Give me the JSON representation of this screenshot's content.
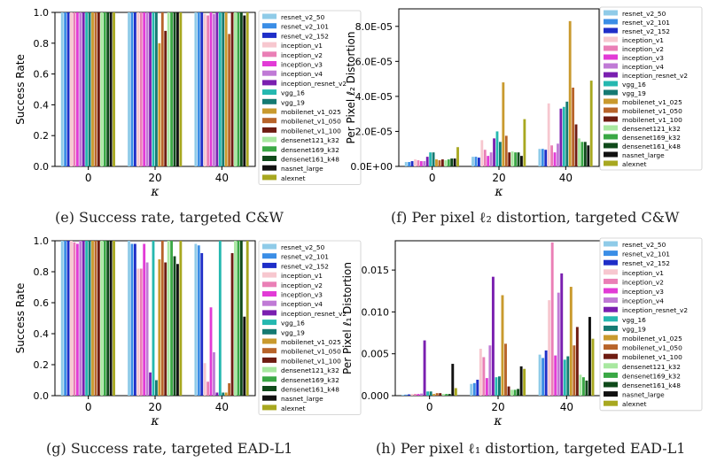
{
  "series": [
    {
      "name": "resnet_v2_50",
      "color": "#8fcbe8"
    },
    {
      "name": "resnet_v2_101",
      "color": "#3b8ee6"
    },
    {
      "name": "resnet_v2_152",
      "color": "#1f2ec8"
    },
    {
      "name": "inception_v1",
      "color": "#f7c7cf"
    },
    {
      "name": "inception_v2",
      "color": "#ea7fb6"
    },
    {
      "name": "inception_v3",
      "color": "#e23bd6"
    },
    {
      "name": "inception_v4",
      "color": "#c07ad6"
    },
    {
      "name": "inception_resnet_v2",
      "color": "#7a1fb0"
    },
    {
      "name": "vgg_16",
      "color": "#25b8b0"
    },
    {
      "name": "vgg_19",
      "color": "#157a72"
    },
    {
      "name": "mobilenet_v1_025",
      "color": "#c99a2e"
    },
    {
      "name": "mobilenet_v1_050",
      "color": "#b8642a"
    },
    {
      "name": "mobilenet_v1_100",
      "color": "#6e1c12"
    },
    {
      "name": "densenet121_k32",
      "color": "#a8e8a0"
    },
    {
      "name": "densenet169_k32",
      "color": "#3aa845"
    },
    {
      "name": "densenet161_k48",
      "color": "#0f4a1a"
    },
    {
      "name": "nasnet_large",
      "color": "#111111"
    },
    {
      "name": "alexnet",
      "color": "#a8a820"
    }
  ],
  "captions": {
    "e": "(e) Success rate, targeted C&W",
    "f": "(f) Per pixel ℓ₂ distortion, targeted C&W",
    "g": "(g) Success rate, targeted EAD-L1",
    "h": "(h) Per pixel ℓ₁ distortion, targeted EAD-L1"
  },
  "chart_data": [
    {
      "id": "e",
      "type": "bar",
      "title": "",
      "xlabel": "κ",
      "ylabel": "Success Rate",
      "categories": [
        "0",
        "20",
        "40"
      ],
      "ylim": [
        0,
        1.0
      ],
      "yticks": [
        "0.0",
        "0.2",
        "0.4",
        "0.6",
        "0.8",
        "1.0"
      ],
      "values": [
        [
          1.0,
          1.0,
          1.0,
          1.0,
          1.0,
          1.0,
          1.0,
          1.0,
          1.0,
          1.0,
          1.0,
          1.0,
          1.0,
          1.0,
          1.0,
          1.0,
          1.0,
          1.0
        ],
        [
          1.0,
          1.0,
          1.0,
          1.0,
          1.0,
          1.0,
          1.0,
          1.0,
          1.0,
          1.0,
          0.8,
          1.0,
          0.88,
          1.0,
          1.0,
          1.0,
          1.0,
          1.0
        ],
        [
          1.0,
          1.0,
          1.0,
          0.99,
          0.98,
          1.0,
          0.99,
          1.0,
          1.0,
          1.0,
          1.0,
          0.86,
          1.0,
          1.0,
          1.0,
          1.0,
          0.98,
          1.0
        ]
      ]
    },
    {
      "id": "f",
      "type": "bar",
      "title": "",
      "xlabel": "κ",
      "ylabel": "Per Pixel ℓ₂ Distortion",
      "categories": [
        "0",
        "20",
        "40"
      ],
      "ylim": [
        0,
        9e-05
      ],
      "yticks": [
        "0.0E+00",
        "2.0E-05",
        "4.0E-05",
        "6.0E-05",
        "8.0E-05"
      ],
      "values": [
        [
          2.5e-06,
          2.5e-06,
          3e-06,
          4e-06,
          3.5e-06,
          3e-06,
          3e-06,
          5.5e-06,
          8e-06,
          8e-06,
          4e-06,
          3.5e-06,
          4e-06,
          3.5e-06,
          4e-06,
          4.5e-06,
          4.5e-06,
          1.1e-05
        ],
        [
          5.5e-06,
          5.5e-06,
          5e-06,
          1.5e-05,
          9.5e-06,
          6e-06,
          8e-06,
          1.6e-05,
          2e-05,
          1.4e-05,
          4.8e-05,
          1.75e-05,
          8e-06,
          8.5e-06,
          8e-06,
          8e-06,
          6e-06,
          2.7e-05
        ],
        [
          1e-05,
          1e-05,
          9.5e-06,
          3.6e-05,
          1.2e-05,
          8e-06,
          1.3e-05,
          3.3e-05,
          3.4e-05,
          3.7e-05,
          8.3e-05,
          4.5e-05,
          2.4e-05,
          1.6e-05,
          1.4e-05,
          1.4e-05,
          1.2e-05,
          4.9e-05
        ]
      ]
    },
    {
      "id": "g",
      "type": "bar",
      "title": "",
      "xlabel": "κ",
      "ylabel": "Success Rate",
      "categories": [
        "0",
        "20",
        "40"
      ],
      "ylim": [
        0,
        1.0
      ],
      "yticks": [
        "0.0",
        "0.2",
        "0.4",
        "0.6",
        "0.8",
        "1.0"
      ],
      "values": [
        [
          1.0,
          1.0,
          1.0,
          1.0,
          0.99,
          0.98,
          1.0,
          1.0,
          1.0,
          1.0,
          1.0,
          1.0,
          1.0,
          1.0,
          1.0,
          1.0,
          1.0,
          1.0
        ],
        [
          1.0,
          0.98,
          0.98,
          0.82,
          0.82,
          0.98,
          0.86,
          0.15,
          1.0,
          0.1,
          0.88,
          1.0,
          0.86,
          1.0,
          1.0,
          0.9,
          0.85,
          1.0
        ],
        [
          0.98,
          0.97,
          0.92,
          0.21,
          0.09,
          0.57,
          0.28,
          0.02,
          1.0,
          0.02,
          0.02,
          0.08,
          0.92,
          1.0,
          1.0,
          1.0,
          0.51,
          1.0
        ]
      ]
    },
    {
      "id": "h",
      "type": "bar",
      "title": "",
      "xlabel": "κ",
      "ylabel": "Per Pixel ℓ₁ Distortion",
      "categories": [
        "0",
        "20",
        "40"
      ],
      "ylim": [
        0,
        0.0185
      ],
      "yticks": [
        "0.000",
        "0.005",
        "0.010",
        "0.015"
      ],
      "values": [
        [
          0.0001,
          0.00012,
          0.00015,
          0.0002,
          0.0002,
          0.0002,
          0.00025,
          0.0066,
          0.0005,
          0.0005,
          0.0002,
          0.0003,
          0.0003,
          0.0002,
          0.0002,
          0.0002,
          0.0038,
          0.0009
        ],
        [
          0.0014,
          0.0015,
          0.0019,
          0.0056,
          0.0046,
          0.0021,
          0.006,
          0.0142,
          0.0022,
          0.0023,
          0.012,
          0.0062,
          0.0011,
          0.0007,
          0.0007,
          0.0008,
          0.0035,
          0.0032
        ],
        [
          0.0049,
          0.0045,
          0.0054,
          0.0114,
          0.0183,
          0.0048,
          0.0123,
          0.0146,
          0.0043,
          0.0047,
          0.013,
          0.006,
          0.0082,
          0.0025,
          0.0022,
          0.0018,
          0.0094,
          0.0068
        ]
      ]
    }
  ]
}
